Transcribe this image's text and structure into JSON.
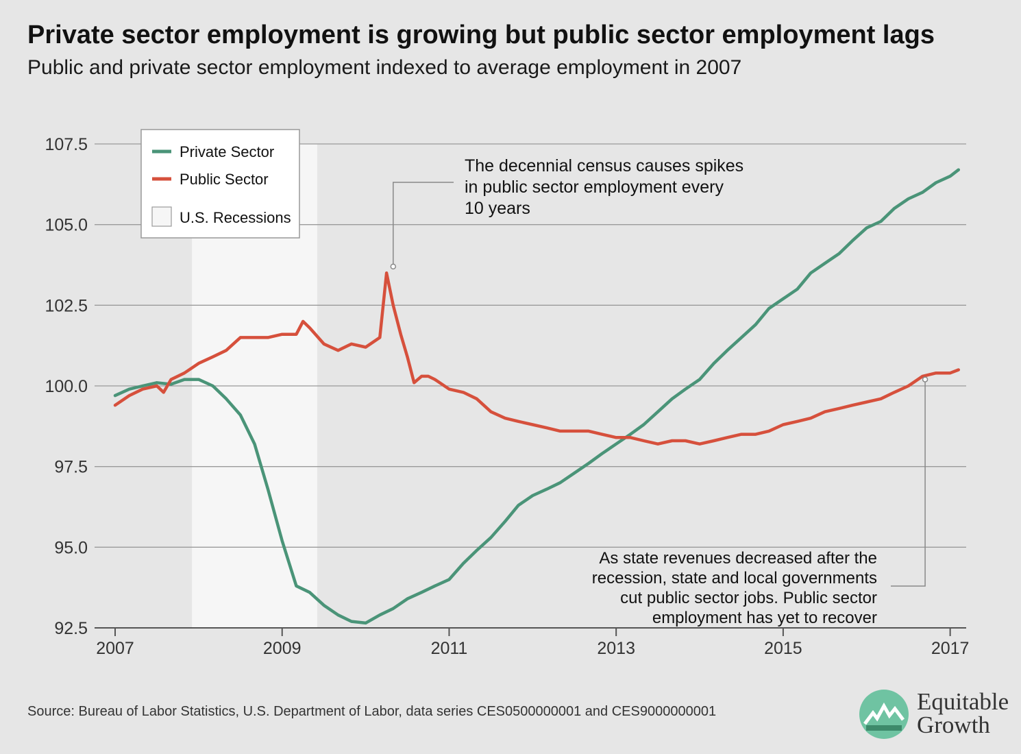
{
  "title": "Private sector employment is growing but public sector employment lags",
  "subtitle": "Public and private sector employment indexed to average employment in 2007",
  "source": "Source: Bureau of Labor Statistics, U.S. Department of Labor, data series CES0500000001 and CES9000000001",
  "logo": {
    "line1": "Equitable",
    "line2": "Growth"
  },
  "colors": {
    "private": "#4a9478",
    "public": "#d6503c",
    "recession": "#f6f6f6",
    "grid": "#9a9a9a",
    "text": "#333333"
  },
  "chart_data": {
    "type": "line",
    "title": "Private sector employment is growing but public sector employment lags",
    "subtitle": "Public and private sector employment indexed to average employment in 2007",
    "xlabel": "",
    "ylabel": "",
    "xlim": [
      2007,
      2017.2
    ],
    "ylim": [
      92.5,
      107.5
    ],
    "x_ticks": [
      "2007",
      "2009",
      "2011",
      "2013",
      "2015",
      "2017"
    ],
    "y_ticks": [
      "92.5",
      "95.0",
      "97.5",
      "100.0",
      "102.5",
      "105.0",
      "107.5"
    ],
    "grid": "horizontal",
    "legend": {
      "position": "top-left",
      "entries": [
        "Private Sector",
        "Public Sector",
        "U.S. Recessions"
      ]
    },
    "recessions": [
      {
        "start": 2007.92,
        "end": 2009.42
      }
    ],
    "series": [
      {
        "name": "Private Sector",
        "x": [
          2007.0,
          2007.17,
          2007.33,
          2007.5,
          2007.67,
          2007.83,
          2008.0,
          2008.17,
          2008.33,
          2008.5,
          2008.67,
          2008.83,
          2009.0,
          2009.17,
          2009.33,
          2009.5,
          2009.67,
          2009.83,
          2010.0,
          2010.17,
          2010.33,
          2010.5,
          2010.67,
          2010.83,
          2011.0,
          2011.17,
          2011.33,
          2011.5,
          2011.67,
          2011.83,
          2012.0,
          2012.17,
          2012.33,
          2012.5,
          2012.67,
          2012.83,
          2013.0,
          2013.17,
          2013.33,
          2013.5,
          2013.67,
          2013.83,
          2014.0,
          2014.17,
          2014.33,
          2014.5,
          2014.67,
          2014.83,
          2015.0,
          2015.17,
          2015.33,
          2015.5,
          2015.67,
          2015.83,
          2016.0,
          2016.17,
          2016.33,
          2016.5,
          2016.67,
          2016.83,
          2017.0,
          2017.1
        ],
        "values": [
          99.7,
          99.9,
          100.0,
          100.1,
          100.05,
          100.2,
          100.2,
          100.0,
          99.6,
          99.1,
          98.2,
          96.8,
          95.2,
          93.8,
          93.6,
          93.2,
          92.9,
          92.7,
          92.65,
          92.9,
          93.1,
          93.4,
          93.6,
          93.8,
          94.0,
          94.5,
          94.9,
          95.3,
          95.8,
          96.3,
          96.6,
          96.8,
          97.0,
          97.3,
          97.6,
          97.9,
          98.2,
          98.5,
          98.8,
          99.2,
          99.6,
          99.9,
          100.2,
          100.7,
          101.1,
          101.5,
          101.9,
          102.4,
          102.7,
          103.0,
          103.5,
          103.8,
          104.1,
          104.5,
          104.9,
          105.1,
          105.5,
          105.8,
          106.0,
          106.3,
          106.5,
          106.7
        ]
      },
      {
        "name": "Public Sector",
        "x": [
          2007.0,
          2007.17,
          2007.33,
          2007.5,
          2007.58,
          2007.67,
          2007.83,
          2008.0,
          2008.17,
          2008.33,
          2008.5,
          2008.67,
          2008.83,
          2009.0,
          2009.17,
          2009.25,
          2009.33,
          2009.5,
          2009.67,
          2009.83,
          2010.0,
          2010.17,
          2010.25,
          2010.33,
          2010.42,
          2010.5,
          2010.58,
          2010.67,
          2010.75,
          2010.83,
          2011.0,
          2011.17,
          2011.33,
          2011.5,
          2011.67,
          2011.83,
          2012.0,
          2012.17,
          2012.33,
          2012.5,
          2012.67,
          2012.83,
          2013.0,
          2013.17,
          2013.33,
          2013.5,
          2013.67,
          2013.83,
          2014.0,
          2014.17,
          2014.33,
          2014.5,
          2014.67,
          2014.83,
          2015.0,
          2015.17,
          2015.33,
          2015.5,
          2015.67,
          2015.83,
          2016.0,
          2016.17,
          2016.33,
          2016.5,
          2016.67,
          2016.83,
          2017.0,
          2017.1
        ],
        "values": [
          99.4,
          99.7,
          99.9,
          100.0,
          99.8,
          100.2,
          100.4,
          100.7,
          100.9,
          101.1,
          101.5,
          101.5,
          101.5,
          101.6,
          101.6,
          102.0,
          101.8,
          101.3,
          101.1,
          101.3,
          101.2,
          101.5,
          103.5,
          102.5,
          101.6,
          100.9,
          100.1,
          100.3,
          100.3,
          100.2,
          99.9,
          99.8,
          99.6,
          99.2,
          99.0,
          98.9,
          98.8,
          98.7,
          98.6,
          98.6,
          98.6,
          98.5,
          98.4,
          98.4,
          98.3,
          98.2,
          98.3,
          98.3,
          98.2,
          98.3,
          98.4,
          98.5,
          98.5,
          98.6,
          98.8,
          98.9,
          99.0,
          99.2,
          99.3,
          99.4,
          99.5,
          99.6,
          99.8,
          100.0,
          100.3,
          100.4,
          100.4,
          100.5
        ]
      }
    ],
    "annotations": [
      {
        "text": [
          "The decennial census causes spikes",
          "in public sector employment every",
          "10 years"
        ],
        "x": 2010.33,
        "y": 103.7
      },
      {
        "text": [
          "As state revenues decreased after the",
          "recession, state and local governments",
          "cut public sector jobs. Public sector",
          "employment has yet to recover"
        ],
        "x": 2016.7,
        "y": 100.2
      }
    ]
  }
}
